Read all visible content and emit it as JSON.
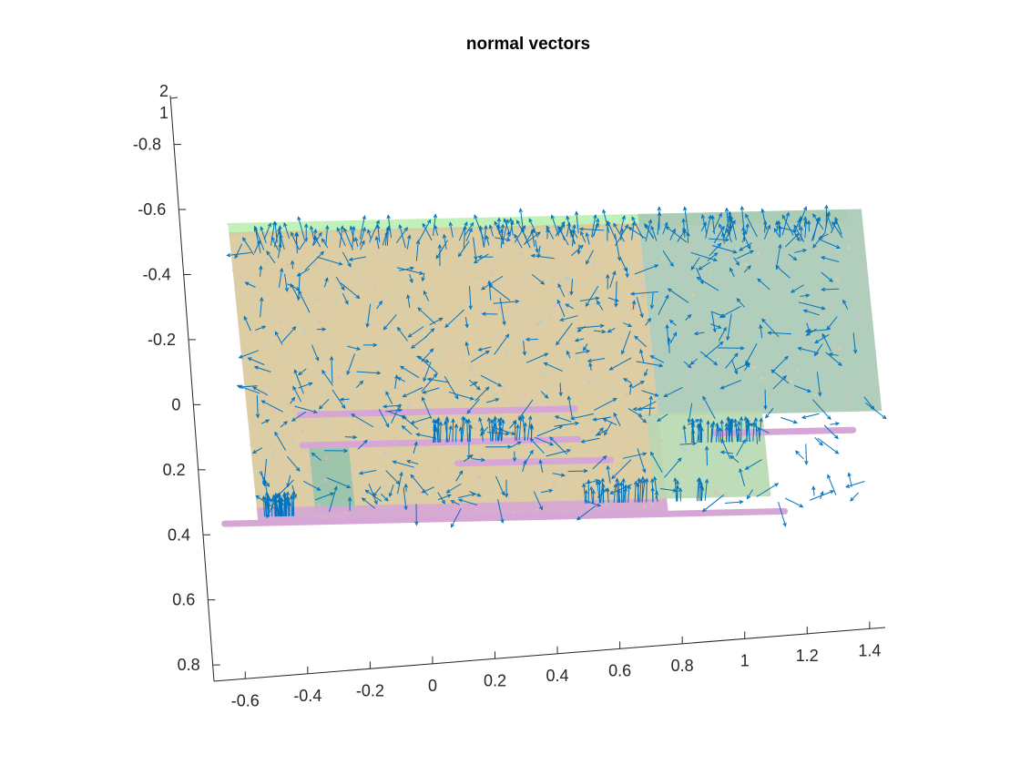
{
  "chart_data": {
    "type": "scatter",
    "title": "normal vectors",
    "xlabel": "",
    "ylabel": "",
    "zlabel": "",
    "view": "3d",
    "grid": false,
    "legend": "none",
    "x_ticks": [
      "-0.6",
      "-0.4",
      "-0.2",
      "0",
      "0.2",
      "0.4",
      "0.6",
      "0.8",
      "1",
      "1.2",
      "1.4"
    ],
    "y_ticks": [
      "-0.8",
      "-0.6",
      "-0.4",
      "-0.2",
      "0",
      "0.2",
      "0.4",
      "0.6",
      "0.8"
    ],
    "z_ticks": [
      "1",
      "2"
    ],
    "xlim": [
      -0.7,
      1.45
    ],
    "ylim": [
      -0.95,
      0.85
    ],
    "series": [
      {
        "type": "point-cloud",
        "color_note": "points colored by normal direction (pastel)",
        "regions": [
          {
            "x": [
              -0.62,
              1.4
            ],
            "y": [
              -0.56,
              -0.6
            ],
            "color": "#b8f0b0"
          },
          {
            "x": [
              -0.62,
              0.72
            ],
            "y": [
              -0.57,
              0.38
            ],
            "color": "#d8c89a"
          },
          {
            "x": [
              0.72,
              1.45
            ],
            "y": [
              -0.6,
              0.06
            ],
            "color": "#a8c8b4"
          },
          {
            "x": [
              -0.43,
              -0.3
            ],
            "y": [
              0.13,
              0.35
            ],
            "color": "#96c4ac"
          },
          {
            "x": [
              0.68,
              1.06
            ],
            "y": [
              0.05,
              0.33
            ],
            "color": "#b8d8b0"
          },
          {
            "x": [
              -0.62,
              0.72
            ],
            "y": [
              0.33,
              0.38
            ],
            "color": "#d6a6d6"
          }
        ]
      },
      {
        "type": "quiver",
        "name": "",
        "color": "#0072bd",
        "bands": [
          {
            "x": [
              -0.03,
              0.3
            ],
            "y": 0.13
          },
          {
            "x": [
              0.45,
              0.85
            ],
            "y": 0.34
          },
          {
            "x": [
              0.8,
              1.05
            ],
            "y": 0.15
          },
          {
            "x": [
              -0.6,
              -0.5
            ],
            "y": 0.36
          }
        ]
      }
    ],
    "floor_strips": [
      {
        "x": [
          -0.73,
          1.1
        ],
        "y": 0.38,
        "color": "#d6a6d6"
      },
      {
        "x": [
          -0.45,
          0.45
        ],
        "y": 0.13,
        "color": "#d6a6d6"
      },
      {
        "x": [
          0.05,
          0.55
        ],
        "y": 0.2,
        "color": "#d6a6d6"
      },
      {
        "x": [
          0.9,
          1.35
        ],
        "y": 0.12,
        "color": "#d6a6d6"
      },
      {
        "x": [
          -0.45,
          0.45
        ],
        "y": 0.03,
        "color": "#d6a6d6"
      }
    ]
  }
}
